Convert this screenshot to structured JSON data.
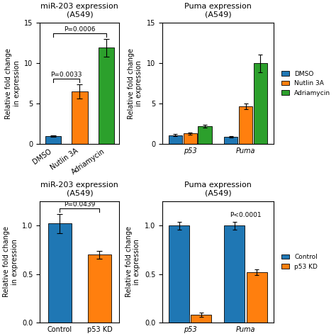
{
  "chart_data": [
    {
      "type": "bar",
      "title": "miR-203 expression\n(A549)",
      "categories": [
        "DMSO",
        "Nutlin 3A",
        "Adriamycin"
      ],
      "series": [
        {
          "values": [
            1.0,
            6.5,
            11.9
          ],
          "errors": [
            0.1,
            0.9,
            1.1
          ],
          "colors": [
            "#1f77b4",
            "#ff7f0e",
            "#2ca02c"
          ]
        }
      ],
      "ylim": [
        0,
        15
      ],
      "yticks": [
        0,
        5,
        10,
        15
      ],
      "ylabel": "Relative fold change\nin expression",
      "annotations": [
        {
          "text": "P=0.0033",
          "between": [
            "DMSO",
            "Nutlin 3A"
          ]
        },
        {
          "text": "P=0.0006",
          "between": [
            "DMSO",
            "Adriamycin"
          ]
        }
      ]
    },
    {
      "type": "bar",
      "title": "Puma expression\n(A549)",
      "categories": [
        "p53",
        "Puma"
      ],
      "series": [
        {
          "name": "DMSO",
          "color": "#1f77b4",
          "values": [
            1.1,
            0.9
          ],
          "errors": [
            0.1,
            0.1
          ]
        },
        {
          "name": "Nutlin 3A",
          "color": "#ff7f0e",
          "values": [
            1.3,
            4.7
          ],
          "errors": [
            0.15,
            0.35
          ]
        },
        {
          "name": "Adriamycin",
          "color": "#2ca02c",
          "values": [
            2.2,
            10.0
          ],
          "errors": [
            0.15,
            1.1
          ]
        }
      ],
      "ylim": [
        0,
        15
      ],
      "yticks": [
        0,
        5,
        10,
        15
      ],
      "ylabel": "Relative fold change\nin expression",
      "legend": "right"
    },
    {
      "type": "bar",
      "title": "miR-203 expression\n(A549)",
      "categories": [
        "Control",
        "p53 KD"
      ],
      "series": [
        {
          "values": [
            1.02,
            0.7
          ],
          "errors": [
            0.1,
            0.04
          ],
          "colors": [
            "#1f77b4",
            "#ff7f0e"
          ]
        }
      ],
      "ylim": [
        0,
        1.25
      ],
      "yticks": [
        0.0,
        0.5,
        1.0
      ],
      "ylabel": "Relative fold change\nin expression",
      "annotations": [
        {
          "text": "P=0.0439",
          "between": [
            "Control",
            "p53 KD"
          ]
        }
      ]
    },
    {
      "type": "bar",
      "title": "Puma expression\n(A549)",
      "categories": [
        "p53",
        "Puma"
      ],
      "series": [
        {
          "name": "Control",
          "color": "#1f77b4",
          "values": [
            1.0,
            1.0
          ],
          "errors": [
            0.04,
            0.04
          ]
        },
        {
          "name": "p53 KD",
          "color": "#ff7f0e",
          "values": [
            0.08,
            0.52
          ],
          "errors": [
            0.02,
            0.03
          ]
        }
      ],
      "ylim": [
        0,
        1.25
      ],
      "yticks": [
        0.0,
        0.5,
        1.0
      ],
      "ylabel": "Relative fold change\nin expression",
      "legend": "right",
      "annotations": [
        {
          "text": "P<0.0001",
          "at": "Puma"
        }
      ]
    }
  ]
}
